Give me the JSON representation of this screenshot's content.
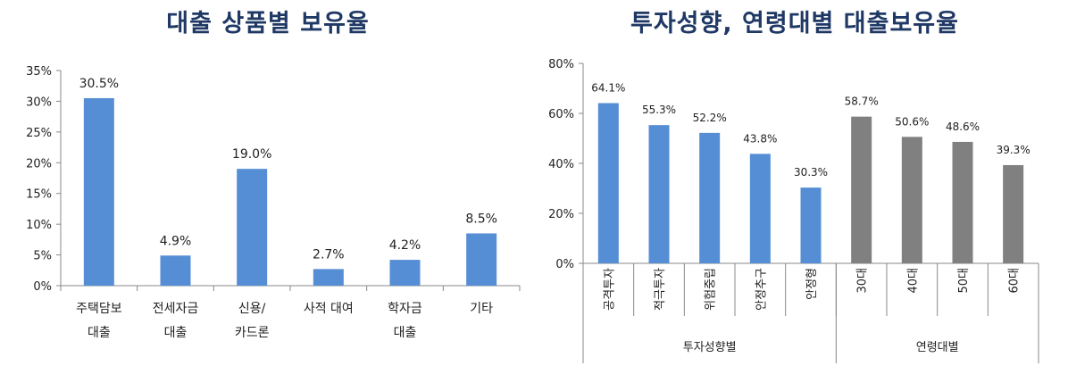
{
  "chart_data": [
    {
      "type": "bar",
      "title": "대출 상품별 보유율",
      "categories": [
        [
          "주택담보",
          "대출"
        ],
        [
          "전세자금",
          "대출"
        ],
        [
          "신용/",
          "카드론"
        ],
        [
          "사적 대여"
        ],
        [
          "학자금",
          "대출"
        ],
        [
          "기타"
        ]
      ],
      "values": [
        30.5,
        4.9,
        19.0,
        2.7,
        4.2,
        8.5
      ],
      "value_labels": [
        "30.5%",
        "4.9%",
        "19.0%",
        "2.7%",
        "4.2%",
        "8.5%"
      ],
      "ylim": [
        0,
        35
      ],
      "yticks": [
        "0%",
        "5%",
        "10%",
        "15%",
        "20%",
        "25%",
        "30%",
        "35%"
      ],
      "grid": false,
      "colors": {
        "bar": "#558ed5"
      }
    },
    {
      "type": "bar",
      "title": "투자성향, 연령대별 대출보유율",
      "categories": [
        "공격투자",
        "적극투자",
        "위험중립",
        "안정추구",
        "안정형",
        "30대",
        "40대",
        "50대",
        "60대"
      ],
      "values": [
        64.1,
        55.3,
        52.2,
        43.8,
        30.3,
        58.7,
        50.6,
        48.6,
        39.3
      ],
      "value_labels": [
        "64.1%",
        "55.3%",
        "52.2%",
        "43.8%",
        "30.3%",
        "58.7%",
        "50.6%",
        "48.6%",
        "39.3%"
      ],
      "groups": [
        {
          "label": "투자성향별",
          "count": 5,
          "color": "#558ed5"
        },
        {
          "label": "연령대별",
          "count": 4,
          "color": "#808080"
        }
      ],
      "ylim": [
        0,
        80
      ],
      "yticks": [
        "0%",
        "20%",
        "40%",
        "60%",
        "80%"
      ],
      "grid": false
    }
  ]
}
